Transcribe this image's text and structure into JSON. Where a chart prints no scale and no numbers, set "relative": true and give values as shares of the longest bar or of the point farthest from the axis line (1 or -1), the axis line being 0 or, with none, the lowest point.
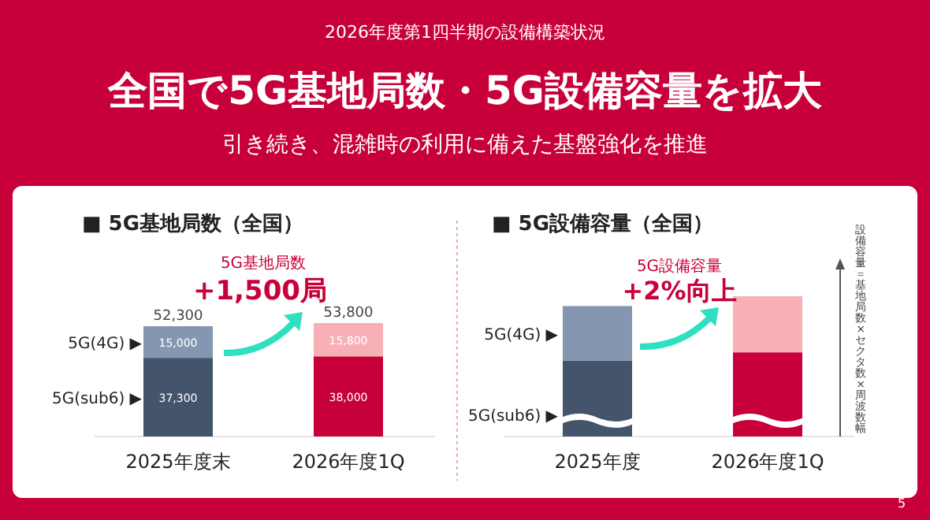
{
  "chart_data": [
    {
      "type": "bar",
      "title": "■ 5G基地局数（全国）",
      "stacked": true,
      "categories": [
        "2025年度末",
        "2026年度1Q"
      ],
      "series": [
        {
          "name": "5G(sub6) ▶",
          "colors": [
            "#44546a",
            "#c8003a"
          ],
          "values": [
            37300,
            38000
          ],
          "value_labels": [
            "37,300",
            "38,000"
          ]
        },
        {
          "name": "5G(4G) ▶",
          "colors": [
            "#8597b0",
            "#f7b1b6"
          ],
          "values": [
            15000,
            15800
          ],
          "value_labels": [
            "15,000",
            "15,800"
          ]
        }
      ],
      "totals": [
        "52,300",
        "53,800"
      ],
      "annotations": [
        "2026年度第1四半期の設備構築状況",
        "全国で5G基地局数・5G設備容量を拡大",
        "引き続き、混雑時の利用に備えた基盤強化を推進",
        "5G基地局数",
        "+1,500局"
      ]
    },
    {
      "type": "bar",
      "title": "■ 5G設備容量（全国）",
      "stacked": true,
      "relative": true,
      "categories": [
        "2025年度",
        "2026年度1Q"
      ],
      "series": [
        {
          "name": "5G(sub6) ▶",
          "colors": [
            "#44546a",
            "#c8003a"
          ],
          "values": [
            0.54,
            0.6
          ]
        },
        {
          "name": "5G(4G) ▶",
          "colors": [
            "#8597b0",
            "#f7b1b6"
          ],
          "values": [
            0.39,
            0.4
          ]
        }
      ],
      "annotations": [
        "5G設備容量",
        "+2%向上",
        "設備容量＝基地局数×セクタ数×周波数幅",
        "5"
      ]
    }
  ]
}
